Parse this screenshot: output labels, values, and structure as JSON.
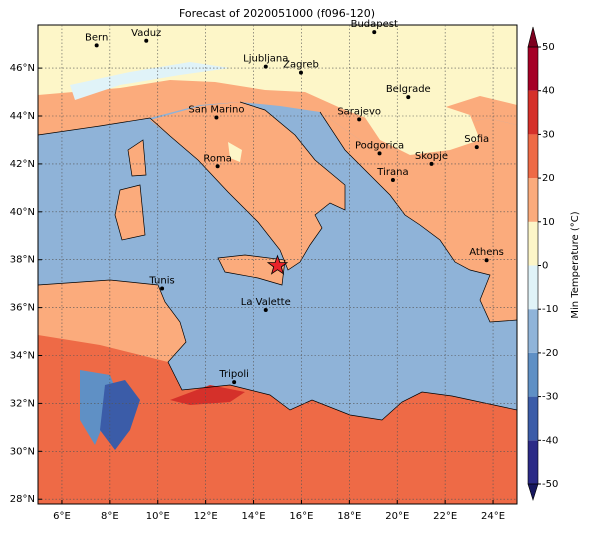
{
  "title": "Forecast of 2020051000 (f096-120)",
  "map": {
    "xlim": [
      5,
      25
    ],
    "ylim": [
      27.8,
      47.8
    ],
    "grid": true,
    "xticks": [
      {
        "value": 6,
        "label": "6°E"
      },
      {
        "value": 8,
        "label": "8°E"
      },
      {
        "value": 10,
        "label": "10°E"
      },
      {
        "value": 12,
        "label": "12°E"
      },
      {
        "value": 14,
        "label": "14°E"
      },
      {
        "value": 16,
        "label": "16°E"
      },
      {
        "value": 18,
        "label": "18°E"
      },
      {
        "value": 20,
        "label": "20°E"
      },
      {
        "value": 22,
        "label": "22°E"
      },
      {
        "value": 24,
        "label": "24°E"
      }
    ],
    "yticks": [
      {
        "value": 28,
        "label": "28°N"
      },
      {
        "value": 30,
        "label": "30°N"
      },
      {
        "value": 32,
        "label": "32°N"
      },
      {
        "value": 34,
        "label": "34°N"
      },
      {
        "value": 36,
        "label": "36°N"
      },
      {
        "value": 38,
        "label": "38°N"
      },
      {
        "value": 40,
        "label": "40°N"
      },
      {
        "value": 42,
        "label": "42°N"
      },
      {
        "value": 44,
        "label": "44°N"
      },
      {
        "value": 46,
        "label": "46°N"
      }
    ],
    "cities": [
      {
        "name": "Bern",
        "lon": 7.45,
        "lat": 46.95
      },
      {
        "name": "Vaduz",
        "lon": 9.52,
        "lat": 47.14
      },
      {
        "name": "Budapest",
        "lon": 19.04,
        "lat": 47.5
      },
      {
        "name": "Ljubljana",
        "lon": 14.51,
        "lat": 46.06
      },
      {
        "name": "Zagreb",
        "lon": 15.98,
        "lat": 45.81
      },
      {
        "name": "Belgrade",
        "lon": 20.46,
        "lat": 44.79
      },
      {
        "name": "San Marino",
        "lon": 12.45,
        "lat": 43.94
      },
      {
        "name": "Sarajevo",
        "lon": 18.41,
        "lat": 43.86
      },
      {
        "name": "Sofia",
        "lon": 23.32,
        "lat": 42.7
      },
      {
        "name": "Podgorica",
        "lon": 19.26,
        "lat": 42.44
      },
      {
        "name": "Skopje",
        "lon": 21.43,
        "lat": 42.0
      },
      {
        "name": "Roma",
        "lon": 12.5,
        "lat": 41.9
      },
      {
        "name": "Tirana",
        "lon": 19.82,
        "lat": 41.33
      },
      {
        "name": "Athens",
        "lon": 23.73,
        "lat": 37.98
      },
      {
        "name": "Tunis",
        "lon": 10.18,
        "lat": 36.8
      },
      {
        "name": "La Valette",
        "lon": 14.51,
        "lat": 35.9
      },
      {
        "name": "Tripoli",
        "lon": 13.19,
        "lat": 32.89
      }
    ],
    "marker": {
      "lon": 15.0,
      "lat": 37.75,
      "color": "#e8232a"
    }
  },
  "colorbar": {
    "label": "Min Temperature (°C)",
    "ticks": [
      -50,
      -40,
      -30,
      -20,
      -10,
      0,
      10,
      20,
      30,
      40,
      50
    ],
    "colors": [
      "#2b2a86",
      "#3b5ca8",
      "#5f90c5",
      "#90b4d9",
      "#e0f3f8",
      "#fdf6c8",
      "#fbab7c",
      "#ee6a46",
      "#d5302a",
      "#a50026"
    ],
    "under": "#17185e",
    "over": "#7d001e"
  }
}
